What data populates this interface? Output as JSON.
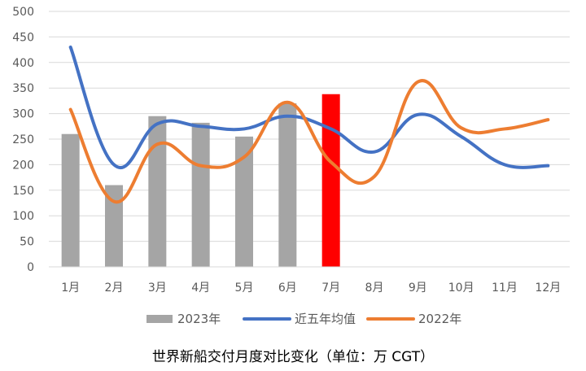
{
  "chart_data": {
    "type": "bar",
    "title": "世界新船交付月度对比变化（单位：万 CGT）",
    "xlabel": "",
    "ylabel": "",
    "categories": [
      "1月",
      "2月",
      "3月",
      "4月",
      "5月",
      "6月",
      "7月",
      "8月",
      "9月",
      "10月",
      "11月",
      "12月"
    ],
    "y_ticks": [
      "0",
      "50",
      "100",
      "150",
      "200",
      "250",
      "300",
      "350",
      "400",
      "450",
      "500"
    ],
    "ylim": [
      0,
      500
    ],
    "grid": true,
    "legend_position": "bottom",
    "bar_series": {
      "name": "2023年",
      "values": [
        260,
        160,
        295,
        282,
        255,
        320,
        338,
        null,
        null,
        null,
        null,
        null
      ],
      "color": "#a5a5a5",
      "highlight_color": "#ff0000",
      "highlight_index": 6
    },
    "line_series": [
      {
        "name": "近五年均值",
        "color": "#4472c4",
        "values": [
          430,
          200,
          280,
          275,
          270,
          295,
          270,
          225,
          298,
          255,
          200,
          198
        ]
      },
      {
        "name": "2022年",
        "color": "#ed7d31",
        "values": [
          308,
          128,
          240,
          198,
          215,
          322,
          205,
          177,
          362,
          272,
          270,
          288
        ]
      }
    ]
  }
}
